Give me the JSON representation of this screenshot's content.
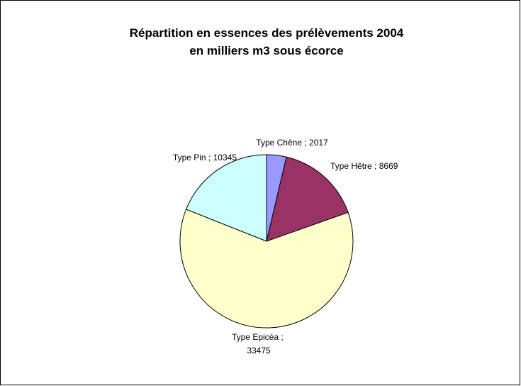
{
  "chart_data": {
    "type": "pie",
    "title": "Répartition en essences des prélèvements 2004",
    "subtitle": "en milliers m3 sous écorce",
    "categories": [
      "Type Chêne",
      "Type Hêtre",
      "Type Epicéa",
      "Type Pin"
    ],
    "values": [
      2017,
      8669,
      33475,
      10345
    ],
    "colors": [
      "#9999ff",
      "#993366",
      "#ffffcc",
      "#ccffff"
    ],
    "label_separator": " ; "
  }
}
